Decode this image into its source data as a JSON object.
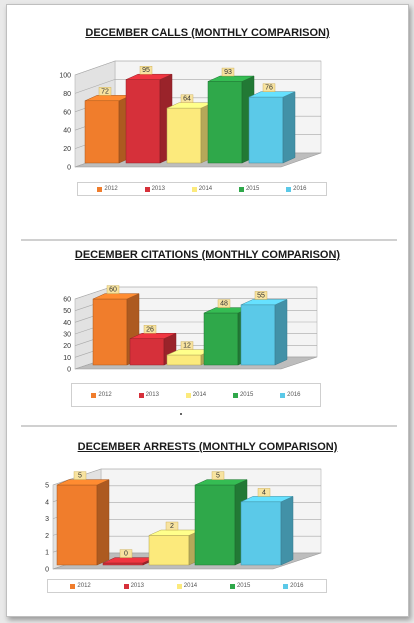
{
  "colors": {
    "2012": "#f07d2c",
    "2013": "#d6303a",
    "2014": "#fcea7c",
    "2015": "#2fa84a",
    "2016": "#5bc9e8"
  },
  "chart_data": [
    {
      "type": "bar",
      "title": "DECEMBER CALLS (MONTHLY COMPARISON)",
      "series": [
        {
          "name": "2012",
          "values": [
            72
          ]
        },
        {
          "name": "2013",
          "values": [
            95
          ]
        },
        {
          "name": "2014",
          "values": [
            64
          ]
        },
        {
          "name": "2015",
          "values": [
            93
          ]
        },
        {
          "name": "2016",
          "values": [
            76
          ]
        }
      ],
      "ylim": [
        0,
        100
      ],
      "yticks": [
        "0",
        "20",
        "40",
        "60",
        "80",
        "100"
      ],
      "grid": true,
      "legend": "bottom"
    },
    {
      "type": "bar",
      "title": "DECEMBER CITATIONS (MONTHLY COMPARISON)",
      "series": [
        {
          "name": "2012",
          "values": [
            60
          ]
        },
        {
          "name": "2013",
          "values": [
            26
          ]
        },
        {
          "name": "2014",
          "values": [
            12
          ]
        },
        {
          "name": "2015",
          "values": [
            48
          ]
        },
        {
          "name": "2016",
          "values": [
            55
          ]
        }
      ],
      "ylim": [
        0,
        60
      ],
      "yticks": [
        "0",
        "10",
        "20",
        "30",
        "40",
        "50",
        "60"
      ],
      "grid": true,
      "legend": "bottom"
    },
    {
      "type": "bar",
      "title": "DECEMBER ARRESTS (MONTHLY COMPARISON)",
      "series": [
        {
          "name": "2012",
          "values": [
            5
          ]
        },
        {
          "name": "2013",
          "values": [
            0
          ]
        },
        {
          "name": "2014",
          "values": [
            2
          ]
        },
        {
          "name": "2015",
          "values": [
            5
          ]
        },
        {
          "name": "2016",
          "values": [
            4
          ]
        }
      ],
      "ylim": [
        0,
        5
      ],
      "yticks": [
        "0",
        "1",
        "2",
        "3",
        "4",
        "5"
      ],
      "grid": true,
      "legend": "bottom"
    }
  ]
}
